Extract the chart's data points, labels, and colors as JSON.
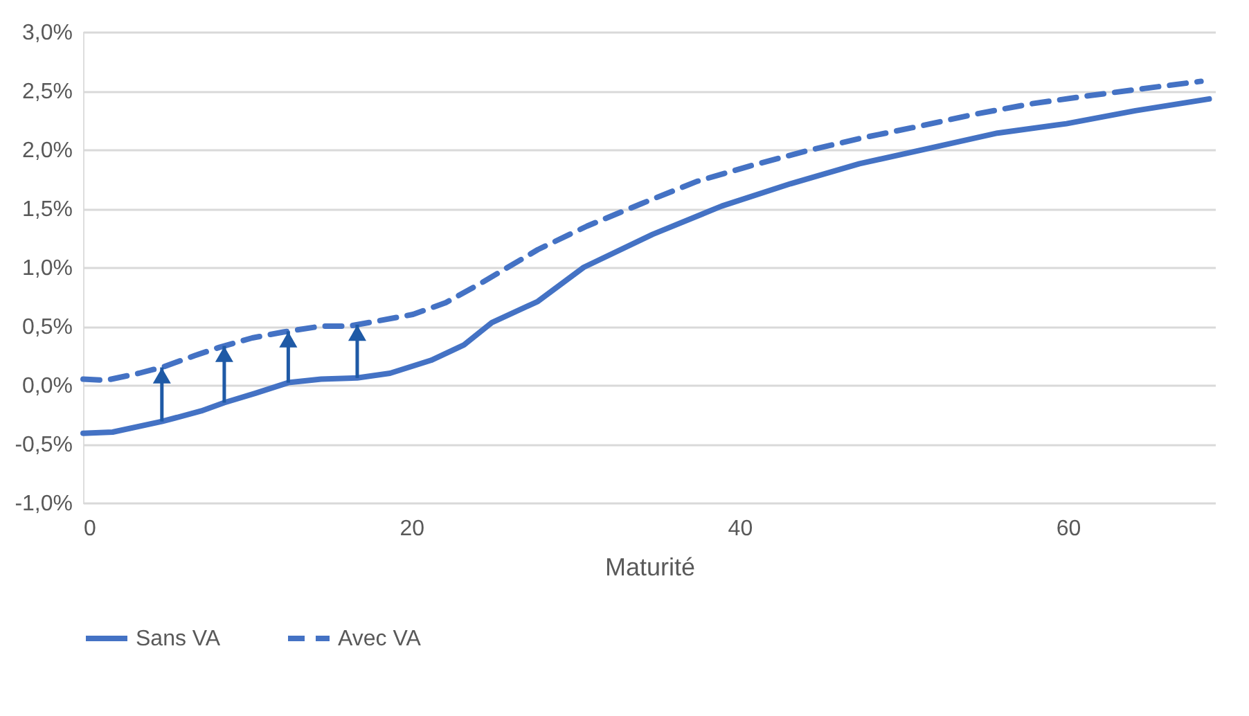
{
  "chart_data": {
    "type": "line",
    "xlabel": "Maturité",
    "xlim": [
      0,
      69
    ],
    "xticks": [
      0,
      20,
      40,
      60
    ],
    "ylim": [
      -1.0,
      3.0
    ],
    "yticks": [
      {
        "value": -1.0,
        "label": "-1,0%"
      },
      {
        "value": -0.5,
        "label": "-0,5%"
      },
      {
        "value": 0,
        "label": "0,0%"
      },
      {
        "value": 0.5,
        "label": "0,5%"
      },
      {
        "value": 1.0,
        "label": "1,0%"
      },
      {
        "value": 1.5,
        "label": "1,5%"
      },
      {
        "value": 2.0,
        "label": "2,0%"
      },
      {
        "value": 2.5,
        "label": "2,5%"
      },
      {
        "value": 3.0,
        "label": "3,0%"
      }
    ],
    "grid": "y",
    "legend": "bottom",
    "series": [
      {
        "name": "Sans VA",
        "color": "#4472c4",
        "line_style": "solid",
        "x": [
          0,
          1.8,
          4.8,
          7.2,
          8.6,
          10.5,
          12.5,
          14.5,
          16.7,
          18.7,
          21.2,
          23.2,
          24.9,
          27.7,
          30.5,
          34.7,
          38.9,
          43.1,
          47.3,
          51.5,
          55.7,
          59.9,
          64.1,
          68.6
        ],
        "values": [
          -0.41,
          -0.4,
          -0.31,
          -0.22,
          -0.15,
          -0.07,
          0.02,
          0.05,
          0.06,
          0.1,
          0.21,
          0.34,
          0.53,
          0.71,
          1.0,
          1.28,
          1.52,
          1.71,
          1.88,
          2.01,
          2.14,
          2.22,
          2.33,
          2.43
        ]
      },
      {
        "name": "Avec VA",
        "color": "#4472c4",
        "line_style": "dashed",
        "x": [
          0,
          1.4,
          3.4,
          4.8,
          6.8,
          8.3,
          10.3,
          12.2,
          14.5,
          16.2,
          17.8,
          20.1,
          22.1,
          24.3,
          27.7,
          30.7,
          34.0,
          37.4,
          40.6,
          44.1,
          47.5,
          51.0,
          54.3,
          57.8,
          61.4,
          64.7,
          68.1
        ],
        "values": [
          0.05,
          0.04,
          0.1,
          0.15,
          0.25,
          0.32,
          0.4,
          0.45,
          0.5,
          0.5,
          0.54,
          0.6,
          0.7,
          0.87,
          1.15,
          1.35,
          1.54,
          1.73,
          1.86,
          1.99,
          2.1,
          2.2,
          2.3,
          2.39,
          2.46,
          2.52,
          2.58
        ]
      }
    ]
  }
}
